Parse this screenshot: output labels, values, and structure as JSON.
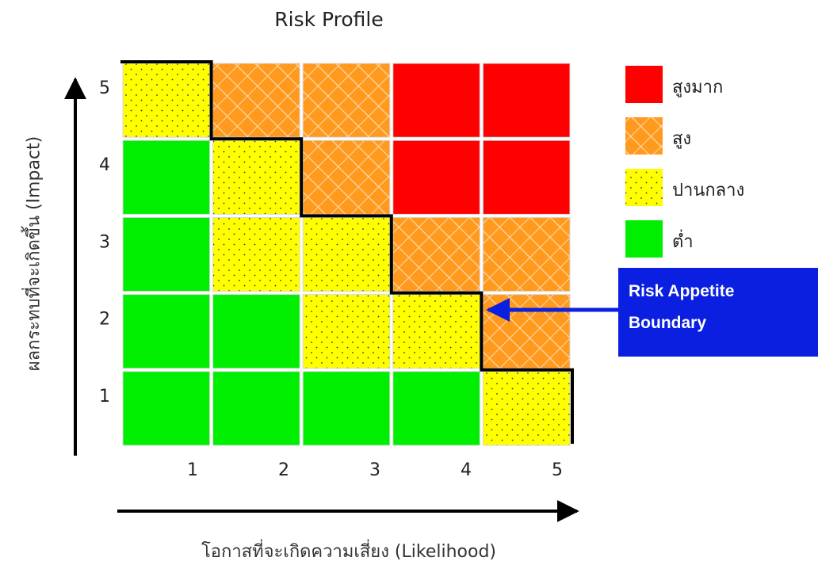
{
  "title": "Risk Profile",
  "axes": {
    "y_label": "ผลกระทบที่จะเกิดขึ้น (Impact)",
    "x_label": "โอกาสที่จะเกิดความเสี่ยง (Likelihood)",
    "y_ticks": [
      "1",
      "2",
      "3",
      "4",
      "5"
    ],
    "x_ticks": [
      "1",
      "2",
      "3",
      "4",
      "5"
    ]
  },
  "levels": {
    "very_high": {
      "label": "สูงมาก",
      "color": "#ff0000"
    },
    "high": {
      "label": "สูง",
      "color": "#ff9a1e"
    },
    "medium": {
      "label": "ปานกลาง",
      "color": "#ffff00"
    },
    "low": {
      "label": "ต่ำ",
      "color": "#00ee00"
    }
  },
  "legend_order": [
    "very_high",
    "high",
    "medium",
    "low"
  ],
  "matrix": {
    "rows_impact_high_to_low": [
      [
        "medium",
        "high",
        "high",
        "very_high",
        "very_high"
      ],
      [
        "low",
        "medium",
        "high",
        "very_high",
        "very_high"
      ],
      [
        "low",
        "medium",
        "medium",
        "high",
        "high"
      ],
      [
        "low",
        "low",
        "medium",
        "medium",
        "high"
      ],
      [
        "low",
        "low",
        "low",
        "low",
        "medium"
      ]
    ]
  },
  "callout": {
    "line1": "Risk Appetite",
    "line2": "Boundary",
    "color": "#0a1fe0"
  }
}
